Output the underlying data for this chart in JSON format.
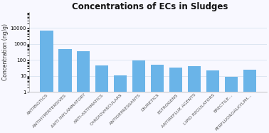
{
  "title": "Concentrations of ECs in Sludges",
  "ylabel": "Concentration (ng/g)",
  "categories": [
    "ANTIBIOTICS",
    "ANTIHYPERTENSIVES",
    "ANTI INFLAMMATORY",
    "ANTI-ASTHMATICS",
    "CARDIOVASCULARS",
    "ANTIDEPRESSANTS",
    "DIURETICS",
    "ESTROGENS",
    "ANTIREFLUX AGENTS",
    "LIPID REGULATORS",
    "ERECTILE...",
    "PERFLUOROALKYLPH..."
  ],
  "values": [
    7000,
    500,
    350,
    45,
    11,
    90,
    50,
    35,
    40,
    22,
    9,
    25
  ],
  "bar_color": "#6ab4e8",
  "background_color": "#f8f8ff",
  "ylim_min": 1,
  "ylim_max": 100000,
  "yticks": [
    1,
    10,
    100,
    1000,
    10000
  ],
  "ytick_labels": [
    "1",
    "10",
    "100",
    "1000",
    "10000"
  ],
  "title_fontsize": 8.5,
  "ylabel_fontsize": 5.5,
  "tick_fontsize": 5,
  "xtick_fontsize": 4.5,
  "bar_width": 0.7
}
